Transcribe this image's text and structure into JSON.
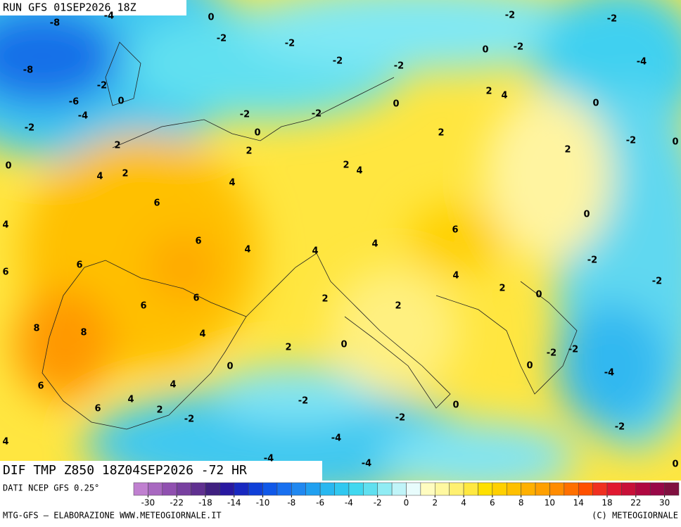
{
  "header": {
    "run": "RUN GFS 01SEP2026 18Z",
    "field": "DIF TMP Z850 18Z04SEP2026 -72 HR"
  },
  "map": {
    "labels": [
      -8,
      -4,
      0,
      -2,
      -2,
      -2,
      -2,
      -8,
      -2,
      -6,
      -4,
      0,
      -2,
      -2,
      -2,
      0,
      -2,
      -4,
      2,
      4,
      -2,
      -2,
      0,
      0,
      0,
      2,
      -2,
      0,
      2,
      2,
      2,
      0,
      2,
      4,
      4,
      2,
      4,
      6,
      0,
      4,
      6,
      6,
      4,
      4,
      4,
      -2,
      6,
      6,
      4,
      -2,
      2,
      0,
      6,
      2,
      2,
      6,
      8,
      8,
      4,
      2,
      0,
      -2,
      -2,
      0,
      0,
      -4,
      6,
      4,
      4,
      -2,
      6,
      2,
      0,
      -2,
      -2,
      -2,
      4,
      -4,
      -4,
      -4,
      0
    ]
  },
  "colorbar": {
    "colors": [
      "#c080d0",
      "#a868c0",
      "#9050b0",
      "#7840a0",
      "#603090",
      "#402080",
      "#2818a0",
      "#1828c0",
      "#1040d8",
      "#1058e8",
      "#1870f0",
      "#2088f0",
      "#20a0f0",
      "#28b8f0",
      "#30c8f0",
      "#40d8f0",
      "#60e0f0",
      "#90ecf4",
      "#c0f4f8",
      "#e8fcfc",
      "#fffcc0",
      "#fff8a0",
      "#fff070",
      "#ffe840",
      "#ffe000",
      "#ffd000",
      "#ffc000",
      "#ffb000",
      "#ffa000",
      "#ff8c00",
      "#ff7000",
      "#ff5000",
      "#f03020",
      "#e01830",
      "#c81038",
      "#b00840",
      "#980848",
      "#801040"
    ],
    "ticks": [
      -30,
      -22,
      -18,
      -14,
      -10,
      -8,
      -6,
      -4,
      -2,
      0,
      2,
      4,
      6,
      8,
      10,
      14,
      18,
      22,
      30
    ]
  },
  "footer": {
    "source": "DATI NCEP GFS 0.25°",
    "credit": "MTG-GFS — ELABORAZIONE WWW.METEOGIORNALE.IT",
    "copyright": "(C) METEOGIORNALE"
  }
}
